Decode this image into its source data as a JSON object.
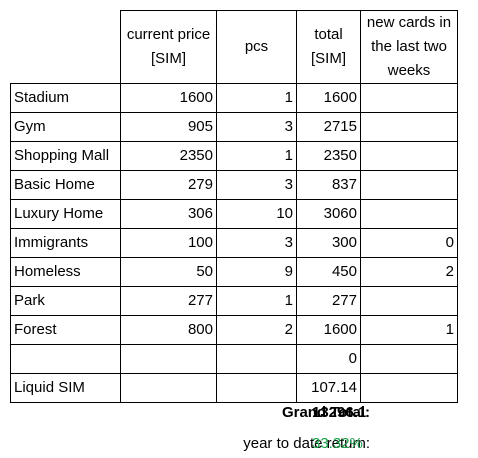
{
  "table": {
    "headers": {
      "name": "",
      "price": "current price [SIM]",
      "pcs": "pcs",
      "total": "total [SIM]",
      "new_cards": "new cards in the last two weeks"
    },
    "rows": [
      {
        "name": "Stadium",
        "price": "1600",
        "pcs": "1",
        "total": "1600",
        "new_cards": ""
      },
      {
        "name": "Gym",
        "price": "905",
        "pcs": "3",
        "total": "2715",
        "new_cards": ""
      },
      {
        "name": "Shopping Mall",
        "price": "2350",
        "pcs": "1",
        "total": "2350",
        "new_cards": ""
      },
      {
        "name": "Basic Home",
        "price": "279",
        "pcs": "3",
        "total": "837",
        "new_cards": ""
      },
      {
        "name": "Luxury Home",
        "price": "306",
        "pcs": "10",
        "total": "3060",
        "new_cards": ""
      },
      {
        "name": "Immigrants",
        "price": "100",
        "pcs": "3",
        "total": "300",
        "new_cards": "0"
      },
      {
        "name": "Homeless",
        "price": "50",
        "pcs": "9",
        "total": "450",
        "new_cards": "2"
      },
      {
        "name": "Park",
        "price": "277",
        "pcs": "1",
        "total": "277",
        "new_cards": ""
      },
      {
        "name": "Forest",
        "price": "800",
        "pcs": "2",
        "total": "1600",
        "new_cards": "1"
      },
      {
        "name": "",
        "price": "",
        "pcs": "",
        "total": "0",
        "new_cards": ""
      },
      {
        "name": "Liquid SIM",
        "price": "",
        "pcs": "",
        "total": "107.14",
        "new_cards": ""
      }
    ]
  },
  "summary": {
    "grand_total_label": "Grand Total:",
    "grand_total_value": "13296.1",
    "ytd_label": "year to date return:",
    "ytd_value": "33.32%",
    "ytd_color": "#1aa34a"
  }
}
